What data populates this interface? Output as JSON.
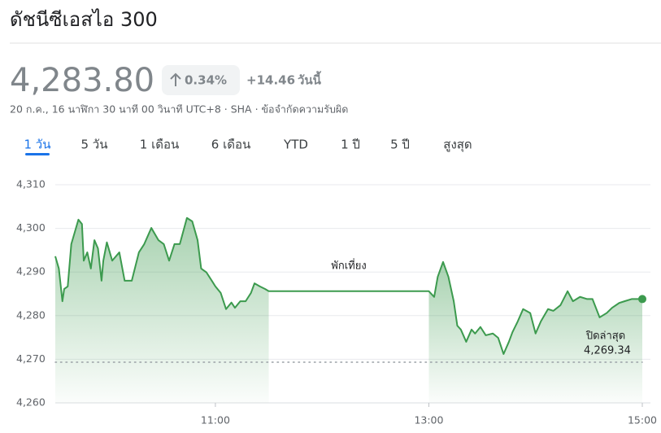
{
  "header": {
    "title": "ดัชนีซีเอสไอ 300",
    "price": "4,283.80",
    "change_percent": "0.34%",
    "change": "+14.46",
    "period": "วันนี้",
    "subtitle": "20 ก.ค., 16 นาฬิกา 30 นาที 00 วินาที UTC+8 · SHA · ข้อจำกัดความรับผิด"
  },
  "tabs": [
    "1 วัน",
    "5 วัน",
    "1 เดือน",
    "6 เดือน",
    "YTD",
    "1 ปี",
    "5 ปี",
    "สูงสุด"
  ],
  "active_tab": 0,
  "chart_data": {
    "type": "line",
    "color": "#3c9a4e",
    "x": [
      "09:30",
      "09:32",
      "09:34",
      "09:35",
      "09:37",
      "09:39",
      "09:41",
      "09:43",
      "09:45",
      "09:46",
      "09:48",
      "09:50",
      "09:52",
      "09:54",
      "09:56",
      "09:57",
      "09:59",
      "10:02",
      "10:06",
      "10:09",
      "10:13",
      "10:17",
      "10:20",
      "10:24",
      "10:28",
      "10:31",
      "10:34",
      "10:37",
      "10:40",
      "10:44",
      "10:47",
      "10:50",
      "10:52",
      "10:55",
      "10:58",
      "11:00",
      "11:03",
      "11:06",
      "11:09",
      "11:11",
      "11:14",
      "11:17",
      "11:20",
      "11:22",
      "11:25",
      "11:28",
      "11:30",
      "13:00",
      "13:03",
      "13:05",
      "13:08",
      "13:11",
      "13:14",
      "13:16",
      "13:18",
      "13:21",
      "13:24",
      "13:26",
      "13:29",
      "13:32",
      "13:36",
      "13:39",
      "13:42",
      "13:45",
      "13:47",
      "13:50",
      "13:53",
      "13:57",
      "14:00",
      "14:03",
      "14:07",
      "14:10",
      "14:14",
      "14:18",
      "14:21",
      "14:25",
      "14:29",
      "14:32",
      "14:36",
      "14:40",
      "14:43",
      "14:47",
      "14:50",
      "14:54",
      "15:00"
    ],
    "values": [
      4293.6,
      4290.8,
      4283.3,
      4286.1,
      4286.7,
      4296.4,
      4299.2,
      4302.0,
      4301.0,
      4292.6,
      4294.5,
      4290.8,
      4297.3,
      4295.4,
      4288.0,
      4292.6,
      4296.8,
      4292.6,
      4294.5,
      4288.0,
      4288.0,
      4294.5,
      4296.4,
      4300.1,
      4297.3,
      4296.4,
      4292.6,
      4296.4,
      4296.4,
      4302.4,
      4301.6,
      4297.3,
      4290.8,
      4289.9,
      4288.0,
      4286.7,
      4285.2,
      4281.5,
      4283.0,
      4281.8,
      4283.3,
      4283.3,
      4285.2,
      4287.4,
      4286.7,
      4286.1,
      4285.6,
      4285.6,
      4284.3,
      4288.9,
      4292.3,
      4288.9,
      4283.3,
      4277.7,
      4276.8,
      4274.0,
      4276.8,
      4275.9,
      4277.4,
      4275.5,
      4275.9,
      4274.9,
      4271.2,
      4274.0,
      4276.2,
      4278.7,
      4281.5,
      4280.6,
      4275.9,
      4278.7,
      4281.5,
      4281.1,
      4282.4,
      4285.6,
      4283.3,
      4284.3,
      4283.8,
      4283.8,
      4279.6,
      4280.6,
      4281.8,
      4282.9,
      4283.3,
      4283.8,
      4283.8
    ],
    "xlim": [
      "09:30",
      "15:00"
    ],
    "xticks": [
      "11:00",
      "13:00",
      "15:00"
    ],
    "ylim": [
      4260,
      4310
    ],
    "yticks": [
      {
        "value": 4260,
        "label": "4,260"
      },
      {
        "value": 4270,
        "label": "4,270"
      },
      {
        "value": 4280,
        "label": "4,280"
      },
      {
        "value": 4290,
        "label": "4,290"
      },
      {
        "value": 4300,
        "label": "4,300"
      },
      {
        "value": 4310,
        "label": "4,310"
      }
    ],
    "grid": true,
    "break": {
      "range": [
        "11:30",
        "13:00"
      ],
      "label": "พักเที่ยง"
    },
    "previous_close": {
      "label": "ปิดล่าสุด",
      "value": 4269.34,
      "value_label": "4,269.34"
    }
  }
}
